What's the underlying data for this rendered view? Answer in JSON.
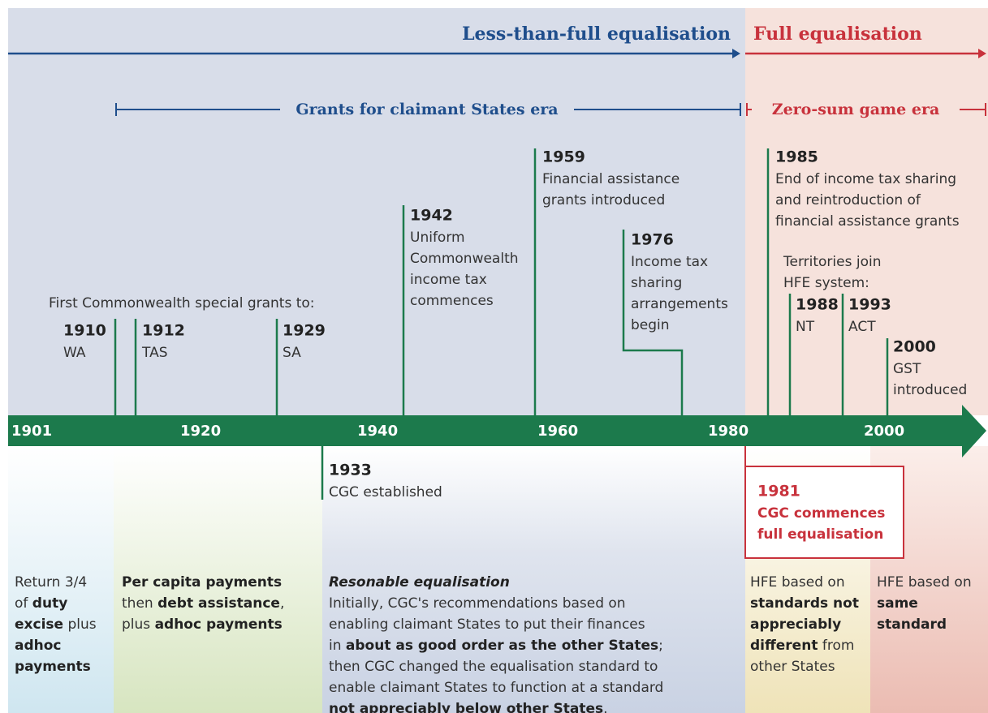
{
  "header": {
    "left_era": "Less-than-full equalisation",
    "right_era": "Full equalisation"
  },
  "sub_eras": {
    "left": "Grants for claimant States era",
    "right": "Zero-sum game era"
  },
  "axis_labels": [
    "1901",
    "1920",
    "1940",
    "1960",
    "1980",
    "2000"
  ],
  "special_grants_caption": "First Commonwealth special grants to:",
  "territories_caption": [
    "Territories join",
    "HFE system:"
  ],
  "events": [
    {
      "year": "1910",
      "lines": [
        "WA"
      ]
    },
    {
      "year": "1912",
      "lines": [
        "TAS"
      ]
    },
    {
      "year": "1929",
      "lines": [
        "SA"
      ]
    },
    {
      "year": "1942",
      "lines": [
        "Uniform",
        "Commonwealth",
        "income tax",
        "commences"
      ]
    },
    {
      "year": "1959",
      "lines": [
        "Financial assistance",
        "grants introduced"
      ]
    },
    {
      "year": "1976",
      "lines": [
        "Income tax",
        "sharing",
        "arrangements",
        "begin"
      ]
    },
    {
      "year": "1985",
      "lines": [
        "End of income tax sharing",
        "and reintroduction of",
        "financial assistance grants"
      ]
    },
    {
      "year": "1988",
      "lines": [
        "NT"
      ]
    },
    {
      "year": "1993",
      "lines": [
        "ACT"
      ]
    },
    {
      "year": "2000",
      "lines": [
        "GST",
        "introduced"
      ]
    },
    {
      "year": "1933",
      "lines": [
        "CGC established"
      ]
    },
    {
      "year": "1981",
      "lines": [
        "CGC commences",
        "full equalisation"
      ]
    }
  ],
  "periods": [
    {
      "lines": [
        [
          {
            "text": "Return 3/4"
          }
        ],
        [
          {
            "text": "of "
          },
          {
            "text": "duty",
            "bold": true
          }
        ],
        [
          {
            "text": "excise",
            "bold": true
          },
          {
            "text": " plus"
          }
        ],
        [
          {
            "text": "adhoc",
            "bold": true
          }
        ],
        [
          {
            "text": "payments",
            "bold": true
          }
        ]
      ]
    },
    {
      "lines": [
        [
          {
            "text": "Per capita payments",
            "bold": true
          }
        ],
        [
          {
            "text": "then "
          },
          {
            "text": "debt assistance",
            "bold": true
          },
          {
            "text": ","
          }
        ],
        [
          {
            "text": "plus "
          },
          {
            "text": "adhoc payments",
            "bold": true
          }
        ]
      ]
    },
    {
      "lines": [
        [
          {
            "text": "Resonable equalisation",
            "bold": true,
            "italic": true
          }
        ],
        [
          {
            "text": "Initially, CGC's recommendations based on"
          }
        ],
        [
          {
            "text": "enabling claimant States to put their finances"
          }
        ],
        [
          {
            "text": "in "
          },
          {
            "text": "about as good order as the other States",
            "bold": true
          },
          {
            "text": ";"
          }
        ],
        [
          {
            "text": "then CGC changed the equalisation standard to"
          }
        ],
        [
          {
            "text": "enable claimant States to function at a standard"
          }
        ],
        [
          {
            "text": "not appreciably below other States",
            "bold": true
          },
          {
            "text": "."
          }
        ]
      ]
    },
    {
      "lines": [
        [
          {
            "text": "HFE based on"
          }
        ],
        [
          {
            "text": "standards not",
            "bold": true
          }
        ],
        [
          {
            "text": "appreciably",
            "bold": true
          }
        ],
        [
          {
            "text": "different",
            "bold": true
          },
          {
            "text": " from"
          }
        ],
        [
          {
            "text": "other States"
          }
        ]
      ]
    },
    {
      "lines": [
        [
          {
            "text": "HFE based on"
          }
        ],
        [
          {
            "text": "same",
            "bold": true
          }
        ],
        [
          {
            "text": "standard",
            "bold": true
          }
        ]
      ]
    }
  ]
}
